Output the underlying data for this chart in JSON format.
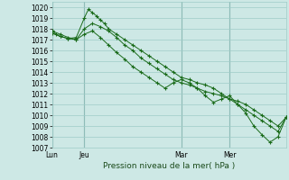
{
  "background_color": "#cde8e5",
  "grid_color": "#9eccc7",
  "line_color": "#1a6b1a",
  "marker": "+",
  "title": "Pression niveau de la mer( hPa )",
  "ylim": [
    1007,
    1020.5
  ],
  "yticks": [
    1007,
    1008,
    1009,
    1010,
    1011,
    1012,
    1013,
    1014,
    1015,
    1016,
    1017,
    1018,
    1019,
    1020
  ],
  "xtick_labels": [
    "Lun",
    "Jeu",
    "Mar",
    "Mer"
  ],
  "xtick_positions": [
    0,
    8,
    32,
    44
  ],
  "xlim": [
    0,
    58
  ],
  "vlines": [
    0,
    8,
    32,
    44
  ],
  "series": [
    {
      "x": [
        0,
        1,
        2,
        4,
        6,
        8,
        9,
        10,
        11,
        12,
        13,
        14,
        16,
        18,
        20,
        22,
        24,
        26,
        28,
        30,
        32,
        34,
        36,
        38,
        40,
        42,
        44,
        46,
        48,
        50,
        52,
        54,
        56,
        58
      ],
      "y": [
        1017.8,
        1017.5,
        1017.3,
        1017.1,
        1017.2,
        1019.0,
        1019.8,
        1019.5,
        1019.2,
        1018.8,
        1018.5,
        1018.0,
        1017.5,
        1017.0,
        1016.5,
        1016.0,
        1015.5,
        1015.0,
        1014.5,
        1014.0,
        1013.5,
        1013.3,
        1013.0,
        1012.8,
        1012.5,
        1012.0,
        1011.5,
        1011.0,
        1010.5,
        1010.0,
        1009.5,
        1009.0,
        1008.5,
        1009.8
      ]
    },
    {
      "x": [
        0,
        2,
        4,
        6,
        8,
        10,
        12,
        14,
        16,
        18,
        20,
        22,
        24,
        26,
        28,
        30,
        32,
        34,
        36,
        38,
        40,
        42,
        44,
        46,
        48,
        50,
        52,
        54,
        56,
        58
      ],
      "y": [
        1017.6,
        1017.3,
        1017.1,
        1017.0,
        1018.0,
        1018.5,
        1018.2,
        1017.8,
        1017.2,
        1016.5,
        1016.0,
        1015.3,
        1014.8,
        1014.3,
        1013.8,
        1013.3,
        1013.0,
        1012.8,
        1012.5,
        1012.2,
        1012.0,
        1011.8,
        1011.5,
        1011.3,
        1011.0,
        1010.5,
        1010.0,
        1009.5,
        1009.0,
        1009.8
      ]
    },
    {
      "x": [
        0,
        2,
        4,
        6,
        8,
        10,
        12,
        14,
        16,
        18,
        20,
        22,
        24,
        26,
        28,
        30,
        32,
        34,
        36,
        38,
        40,
        42,
        44,
        46,
        48,
        50,
        52,
        54,
        56,
        58
      ],
      "y": [
        1017.8,
        1017.5,
        1017.2,
        1017.0,
        1017.5,
        1017.8,
        1017.2,
        1016.5,
        1015.8,
        1015.2,
        1014.5,
        1014.0,
        1013.5,
        1013.0,
        1012.5,
        1013.0,
        1013.3,
        1013.0,
        1012.5,
        1011.8,
        1011.2,
        1011.5,
        1011.8,
        1011.0,
        1010.2,
        1009.0,
        1008.2,
        1007.5,
        1008.0,
        1009.8
      ]
    }
  ]
}
